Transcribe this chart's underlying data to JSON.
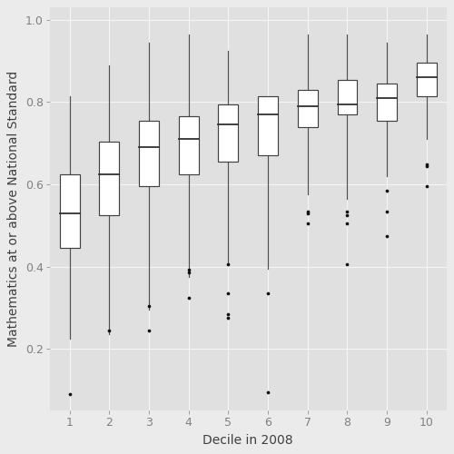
{
  "title": "",
  "xlabel": "Decile in 2008",
  "ylabel": "Mathematics at or above National Standard",
  "xlim": [
    0.5,
    10.5
  ],
  "ylim": [
    0.05,
    1.03
  ],
  "yticks": [
    0.2,
    0.4,
    0.6,
    0.8,
    1.0
  ],
  "background_color": "#EBEBEB",
  "panel_color": "#E0E0E0",
  "grid_color": "#F5F5F5",
  "box_color": "#FFFFFF",
  "box_edge_color": "#404040",
  "median_color": "#303030",
  "whisker_color": "#505050",
  "outlier_color": "#101010",
  "deciles": [
    1,
    2,
    3,
    4,
    5,
    6,
    7,
    8,
    9,
    10
  ],
  "boxes": [
    {
      "q1": 0.445,
      "median": 0.53,
      "q3": 0.625,
      "whisker_low": 0.225,
      "whisker_high": 0.815,
      "outliers": [
        0.09
      ]
    },
    {
      "q1": 0.525,
      "median": 0.625,
      "q3": 0.705,
      "whisker_low": 0.235,
      "whisker_high": 0.89,
      "outliers": [
        0.245
      ]
    },
    {
      "q1": 0.595,
      "median": 0.69,
      "q3": 0.755,
      "whisker_low": 0.295,
      "whisker_high": 0.945,
      "outliers": [
        0.245,
        0.305
      ]
    },
    {
      "q1": 0.625,
      "median": 0.71,
      "q3": 0.765,
      "whisker_low": 0.375,
      "whisker_high": 0.965,
      "outliers": [
        0.325,
        0.385,
        0.392
      ]
    },
    {
      "q1": 0.655,
      "median": 0.745,
      "q3": 0.795,
      "whisker_low": 0.405,
      "whisker_high": 0.925,
      "outliers": [
        0.275,
        0.285,
        0.335,
        0.405
      ]
    },
    {
      "q1": 0.67,
      "median": 0.77,
      "q3": 0.815,
      "whisker_low": 0.395,
      "whisker_high": 0.815,
      "outliers": [
        0.095,
        0.335
      ]
    },
    {
      "q1": 0.74,
      "median": 0.79,
      "q3": 0.83,
      "whisker_low": 0.575,
      "whisker_high": 0.965,
      "outliers": [
        0.505,
        0.53,
        0.535
      ]
    },
    {
      "q1": 0.77,
      "median": 0.795,
      "q3": 0.855,
      "whisker_low": 0.565,
      "whisker_high": 0.965,
      "outliers": [
        0.405,
        0.505,
        0.525,
        0.535
      ]
    },
    {
      "q1": 0.755,
      "median": 0.81,
      "q3": 0.845,
      "whisker_low": 0.62,
      "whisker_high": 0.945,
      "outliers": [
        0.475,
        0.535,
        0.585
      ]
    },
    {
      "q1": 0.815,
      "median": 0.86,
      "q3": 0.895,
      "whisker_low": 0.71,
      "whisker_high": 0.965,
      "outliers": [
        0.595,
        0.645,
        0.648
      ]
    }
  ],
  "box_width": 0.5,
  "figsize": [
    5.0,
    5.0
  ],
  "dpi": 100,
  "font_size_axis_label": 10,
  "font_size_tick": 9,
  "tick_color": "#808080"
}
